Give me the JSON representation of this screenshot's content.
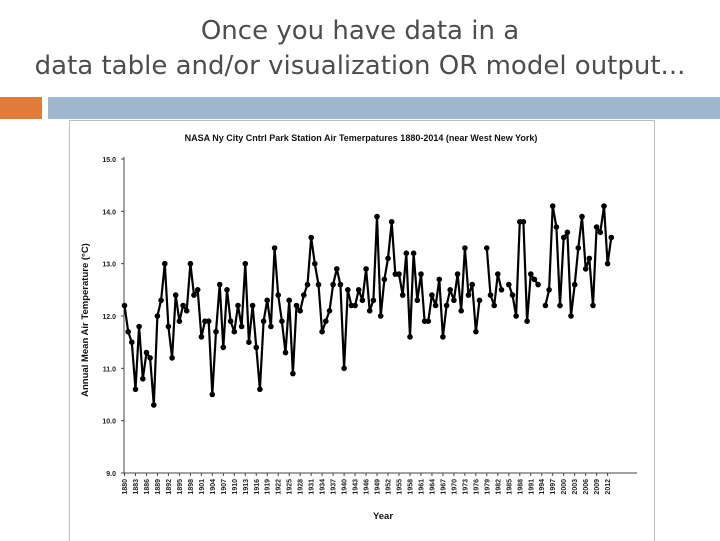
{
  "slide": {
    "title_line1": "Once you have data in a",
    "title_line2": "data table and/or visualization OR model output...",
    "accent_color": "#e07b3c",
    "bar_color": "#9fb7cf"
  },
  "chart_data": {
    "type": "line",
    "title": "NASA Ny City Cntrl Park Station Air Temerpatures 1880-2014 (near West New York)",
    "xlabel": "Year",
    "ylabel": "Annual Mean Air Temperature (°C)",
    "ylim": [
      9.0,
      15.0
    ],
    "yticks": [
      "9.0",
      "10.0",
      "11.0",
      "12.0",
      "13.0",
      "14.0",
      "15.0"
    ],
    "xlim": [
      1880,
      2014
    ],
    "xticks": [
      "1880",
      "1883",
      "1886",
      "1889",
      "1892",
      "1895",
      "1898",
      "1901",
      "1904",
      "1907",
      "1910",
      "1913",
      "1916",
      "1919",
      "1922",
      "1925",
      "1928",
      "1931",
      "1934",
      "1937",
      "1940",
      "1943",
      "1946",
      "1949",
      "1952",
      "1955",
      "1958",
      "1961",
      "1964",
      "1967",
      "1970",
      "1973",
      "1976",
      "1979",
      "1982",
      "1985",
      "1988",
      "1991",
      "1994",
      "1997",
      "2000",
      "2003",
      "2006",
      "2009",
      "2012"
    ],
    "grid": false,
    "line_color": "#000000",
    "series": [
      {
        "segments": [
          {
            "x": [
              1880,
              1881,
              1882,
              1883,
              1884,
              1885,
              1886,
              1887,
              1888,
              1889,
              1890,
              1891,
              1892,
              1893,
              1894,
              1895,
              1896,
              1897,
              1898,
              1899,
              1900,
              1901,
              1902,
              1903,
              1904,
              1905,
              1906,
              1907,
              1908,
              1909,
              1910,
              1911,
              1912,
              1913,
              1914,
              1915,
              1916,
              1917,
              1918,
              1919,
              1920,
              1921,
              1922,
              1923,
              1924,
              1925,
              1926,
              1927,
              1928,
              1929,
              1930,
              1931,
              1932,
              1933,
              1934,
              1935,
              1936,
              1937,
              1938,
              1939,
              1940,
              1941,
              1942,
              1943,
              1944,
              1945,
              1946,
              1947,
              1948,
              1949,
              1950,
              1951,
              1952,
              1953,
              1954,
              1955,
              1956,
              1957,
              1958,
              1959,
              1960,
              1961,
              1962,
              1963,
              1964,
              1965,
              1966,
              1967,
              1968,
              1969,
              1970,
              1971,
              1972,
              1973,
              1974,
              1975,
              1976,
              1977
            ],
            "y": [
              12.2,
              11.7,
              11.5,
              10.6,
              11.8,
              10.8,
              11.3,
              11.2,
              10.3,
              12.0,
              12.3,
              13.0,
              11.8,
              11.2,
              12.4,
              11.9,
              12.2,
              12.1,
              13.0,
              12.4,
              12.5,
              11.6,
              11.9,
              11.9,
              10.5,
              11.7,
              12.6,
              11.4,
              12.5,
              11.9,
              11.7,
              12.2,
              11.8,
              13.0,
              11.5,
              12.2,
              11.4,
              10.6,
              11.9,
              12.3,
              11.8,
              13.3,
              12.4,
              11.9,
              11.3,
              12.3,
              10.9,
              12.2,
              12.1,
              12.4,
              12.6,
              13.5,
              13.0,
              12.6,
              11.7,
              11.9,
              12.1,
              12.6,
              12.9,
              12.6,
              11.0,
              12.5,
              12.2,
              12.2,
              12.5,
              12.3,
              12.9,
              12.1,
              12.3,
              13.9,
              12.0,
              12.7,
              13.1,
              13.8,
              12.8,
              12.8,
              12.4,
              13.2,
              11.6,
              13.2,
              12.3,
              12.8,
              11.9,
              11.9,
              12.4,
              12.2,
              12.7,
              11.6,
              12.2,
              12.5,
              12.3,
              12.8,
              12.1,
              13.3,
              12.4,
              12.6,
              11.7,
              12.3
            ]
          },
          {
            "x": [
              1979,
              1980,
              1981,
              1982,
              1983
            ],
            "y": [
              13.3,
              12.4,
              12.2,
              12.8,
              12.5
            ]
          },
          {
            "x": [
              1985,
              1986,
              1987,
              1988,
              1989,
              1990,
              1991,
              1992,
              1993
            ],
            "y": [
              12.6,
              12.4,
              12.0,
              13.8,
              13.8,
              11.9,
              12.8,
              12.7,
              12.6
            ]
          },
          {
            "x": [
              1995,
              1996,
              1997,
              1998,
              1999,
              2000,
              2001,
              2002,
              2003,
              2004,
              2005,
              2006,
              2007,
              2008,
              2009,
              2010,
              2011,
              2012,
              2013
            ],
            "y": [
              12.2,
              12.5,
              14.1,
              13.7,
              12.2,
              13.5,
              13.6,
              12.0,
              12.6,
              13.3,
              13.9,
              12.9,
              13.1,
              12.2,
              13.7,
              13.6,
              14.1,
              13.0,
              13.5
            ]
          }
        ]
      }
    ]
  }
}
